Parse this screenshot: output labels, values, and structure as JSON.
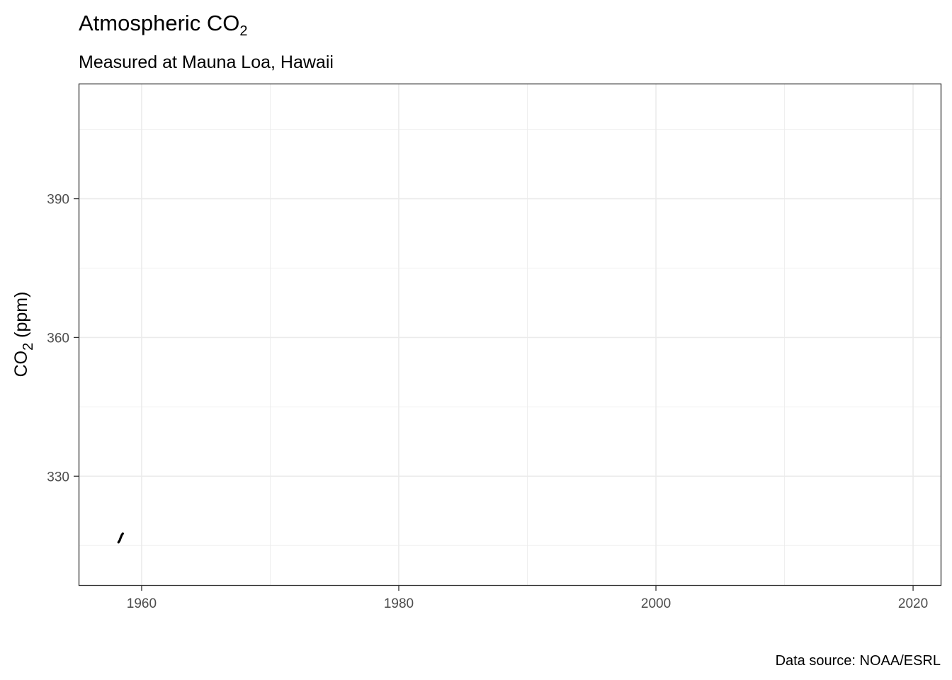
{
  "chart_data": {
    "type": "line",
    "title_main": "Atmospheric CO",
    "title_sub": "2",
    "subtitle": "Measured at Mauna Loa, Hawaii",
    "ylabel_main": "CO",
    "ylabel_sub": "2",
    "ylabel_rest": " (ppm)",
    "xlabel": "",
    "caption": "Data source: NOAA/ESRL",
    "xlim": [
      1955.1,
      2022.2
    ],
    "ylim": [
      306.3,
      414.9
    ],
    "x_ticks": [
      1960,
      1980,
      2000,
      2020
    ],
    "x_tick_labels": [
      "1960",
      "1980",
      "2000",
      "2020"
    ],
    "x_minor_ticks": [
      1970,
      1990,
      2010
    ],
    "y_ticks": [
      330,
      360,
      390
    ],
    "y_tick_labels": [
      "330",
      "360",
      "390"
    ],
    "y_minor_ticks": [
      315,
      345,
      375,
      405
    ],
    "grid": true,
    "line_color": "#000000",
    "series": [
      {
        "x": [
          1958.2,
          1958.29,
          1958.37,
          1958.46,
          1958.54
        ],
        "y": [
          315.7,
          316.1,
          316.7,
          317.3,
          317.6
        ]
      }
    ]
  }
}
